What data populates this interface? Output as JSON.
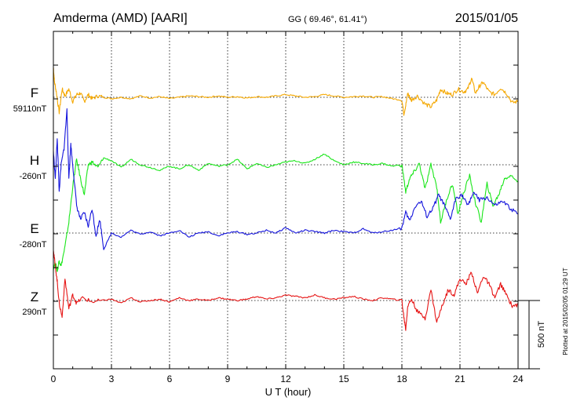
{
  "chart_data": {
    "type": "line",
    "title": "Amderma (AMD)  [AARI]",
    "coordinates": "GG ( 69.46°,  61.41°)",
    "date": "2015/01/05",
    "xlabel": "U T (hour)",
    "xlim": [
      0,
      24
    ],
    "x_ticks": [
      0,
      3,
      6,
      9,
      12,
      15,
      18,
      21,
      24
    ],
    "x_tick_labels": [
      "0",
      "3",
      "6",
      "9",
      "12",
      "15",
      "18",
      "21",
      "24"
    ],
    "grid": true,
    "scale_bar": {
      "label": "500 nT",
      "value_nT": 500
    },
    "footnote": "Plotted at 2015/02/05 01:29 UT",
    "series": [
      {
        "name": "F",
        "baseline_label": "59110nT",
        "baseline_nT": 59110,
        "color": "#f5a800",
        "x": [
          0,
          0.05,
          0.15,
          0.3,
          0.45,
          0.6,
          0.8,
          1.0,
          1.2,
          1.4,
          1.6,
          1.8,
          2.0,
          2.3,
          2.6,
          3.0,
          3.5,
          4.0,
          4.5,
          5.0,
          5.5,
          6.0,
          6.5,
          7.0,
          7.5,
          8.0,
          8.5,
          9.0,
          9.5,
          10.0,
          10.5,
          11.0,
          11.5,
          12.0,
          12.5,
          13.0,
          13.5,
          14.0,
          14.5,
          15.0,
          15.5,
          16.0,
          16.5,
          17.0,
          17.5,
          18.0,
          18.1,
          18.2,
          18.3,
          18.4,
          18.5,
          18.8,
          19.2,
          19.5,
          19.8,
          20.0,
          20.3,
          20.6,
          20.9,
          21.2,
          21.4,
          21.6,
          21.8,
          22.0,
          22.2,
          22.5,
          22.8,
          23.1,
          23.4,
          23.7,
          24.0
        ],
        "values": [
          220,
          120,
          40,
          -110,
          60,
          10,
          60,
          -30,
          20,
          30,
          -30,
          20,
          -10,
          10,
          0,
          -10,
          0,
          -10,
          10,
          -5,
          5,
          -10,
          0,
          10,
          5,
          0,
          10,
          0,
          5,
          -5,
          5,
          0,
          10,
          20,
          10,
          0,
          5,
          20,
          10,
          0,
          5,
          10,
          0,
          5,
          -10,
          -20,
          -120,
          -60,
          30,
          0,
          -20,
          10,
          -50,
          -70,
          -20,
          60,
          30,
          20,
          60,
          40,
          60,
          140,
          30,
          80,
          110,
          40,
          20,
          70,
          30,
          -40,
          -30
        ]
      },
      {
        "name": "H",
        "baseline_label": "-260nT",
        "baseline_nT": -260,
        "color": "#19e619",
        "x": [
          0,
          0.1,
          0.2,
          0.3,
          0.4,
          0.6,
          0.8,
          1.0,
          1.2,
          1.4,
          1.6,
          1.8,
          2.0,
          2.3,
          2.6,
          3.0,
          3.5,
          4.0,
          4.5,
          5.0,
          5.5,
          6.0,
          6.5,
          7.0,
          7.5,
          8.0,
          8.5,
          9.0,
          9.5,
          10.0,
          10.5,
          11.0,
          11.5,
          12.0,
          12.5,
          13.0,
          13.5,
          14.0,
          14.5,
          15.0,
          15.5,
          16.0,
          16.5,
          17.0,
          17.5,
          18.0,
          18.2,
          18.4,
          18.6,
          18.9,
          19.2,
          19.5,
          19.8,
          20.0,
          20.3,
          20.6,
          20.9,
          21.2,
          21.5,
          21.8,
          22.1,
          22.4,
          22.7,
          23.0,
          23.3,
          23.6,
          24.0
        ],
        "values": [
          -760,
          -720,
          -780,
          -700,
          -740,
          -600,
          -420,
          -160,
          40,
          -100,
          -220,
          0,
          20,
          -20,
          50,
          30,
          -20,
          40,
          0,
          -20,
          -40,
          -10,
          -30,
          0,
          -40,
          10,
          -10,
          0,
          40,
          -30,
          10,
          -20,
          0,
          20,
          30,
          10,
          40,
          80,
          30,
          0,
          20,
          10,
          0,
          10,
          -10,
          0,
          -200,
          -100,
          -60,
          10,
          -180,
          0,
          -160,
          -420,
          -260,
          -140,
          -360,
          -200,
          -80,
          -280,
          -420,
          -140,
          -300,
          -220,
          -100,
          -80,
          -120
        ]
      },
      {
        "name": "E",
        "baseline_label": "-280nT",
        "baseline_nT": -280,
        "color": "#1414dc",
        "x": [
          0,
          0.1,
          0.2,
          0.3,
          0.4,
          0.55,
          0.7,
          0.8,
          0.9,
          1.0,
          1.2,
          1.4,
          1.6,
          1.8,
          2.0,
          2.2,
          2.4,
          2.6,
          3.0,
          3.5,
          4.0,
          4.5,
          5.0,
          5.5,
          6.0,
          6.5,
          7.0,
          7.5,
          8.0,
          8.5,
          9.0,
          9.5,
          10.0,
          10.5,
          11.0,
          11.5,
          12.0,
          12.5,
          13.0,
          13.5,
          14.0,
          14.5,
          15.0,
          15.5,
          16.0,
          16.5,
          17.0,
          17.5,
          18.0,
          18.2,
          18.4,
          18.7,
          19.0,
          19.3,
          19.6,
          19.9,
          20.2,
          20.5,
          20.8,
          21.1,
          21.4,
          21.7,
          22.0,
          22.4,
          22.8,
          23.2,
          23.6,
          24.0
        ],
        "values": [
          600,
          400,
          700,
          300,
          500,
          620,
          900,
          400,
          650,
          500,
          200,
          100,
          150,
          50,
          180,
          -20,
          100,
          -120,
          0,
          -30,
          20,
          -10,
          10,
          -20,
          0,
          20,
          -30,
          0,
          10,
          -20,
          0,
          10,
          -10,
          0,
          20,
          0,
          40,
          0,
          20,
          10,
          0,
          20,
          10,
          0,
          30,
          0,
          10,
          20,
          40,
          150,
          90,
          200,
          230,
          120,
          180,
          280,
          200,
          100,
          260,
          280,
          200,
          300,
          240,
          260,
          200,
          230,
          180,
          140
        ]
      },
      {
        "name": "Z",
        "baseline_label": "290nT",
        "baseline_nT": 290,
        "color": "#e61414",
        "x": [
          0,
          0.1,
          0.2,
          0.3,
          0.45,
          0.6,
          0.8,
          1.0,
          1.2,
          1.5,
          2.0,
          2.5,
          3.0,
          3.5,
          4.0,
          4.5,
          5.0,
          5.5,
          6.0,
          6.5,
          7.0,
          7.5,
          8.0,
          8.5,
          9.0,
          9.5,
          10.0,
          10.5,
          11.0,
          11.5,
          12.0,
          12.5,
          13.0,
          13.5,
          14.0,
          14.5,
          15.0,
          15.5,
          16.0,
          16.5,
          17.0,
          17.5,
          18.0,
          18.1,
          18.2,
          18.3,
          18.5,
          18.8,
          19.2,
          19.5,
          19.8,
          20.1,
          20.4,
          20.7,
          21.0,
          21.3,
          21.6,
          21.9,
          22.2,
          22.5,
          22.8,
          23.1,
          23.4,
          23.7,
          24.0
        ],
        "values": [
          380,
          250,
          140,
          -20,
          -120,
          160,
          -60,
          40,
          -20,
          20,
          -10,
          0,
          10,
          -20,
          20,
          -10,
          0,
          10,
          -10,
          20,
          0,
          10,
          0,
          20,
          10,
          0,
          10,
          30,
          10,
          20,
          40,
          30,
          20,
          40,
          20,
          10,
          20,
          30,
          10,
          0,
          20,
          10,
          0,
          -120,
          -210,
          -40,
          10,
          -80,
          -130,
          80,
          -160,
          -30,
          80,
          40,
          160,
          120,
          210,
          50,
          180,
          120,
          20,
          120,
          40,
          -40,
          -30
        ]
      }
    ]
  }
}
